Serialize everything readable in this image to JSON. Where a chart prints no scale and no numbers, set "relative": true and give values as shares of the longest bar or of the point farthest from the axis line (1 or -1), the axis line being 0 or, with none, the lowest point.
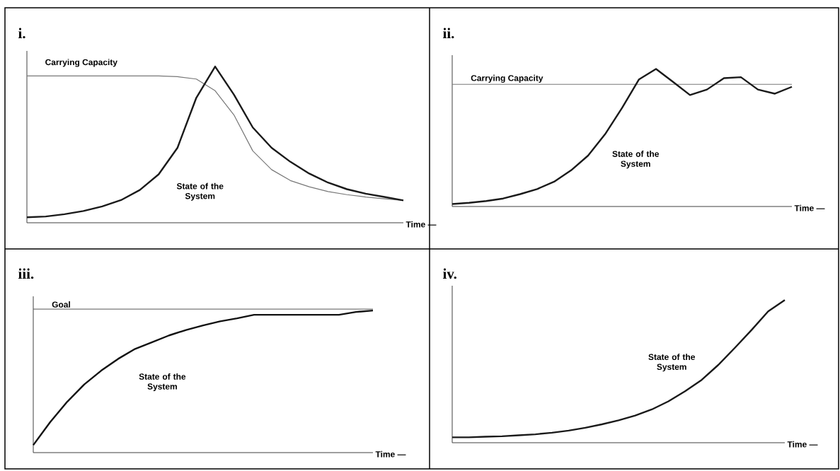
{
  "chart_data": [
    {
      "type": "line",
      "title": "i.",
      "xlabel": "Time —",
      "relative": true,
      "categories": [
        null,
        null,
        null,
        null,
        null,
        null,
        null,
        null,
        null,
        null,
        null,
        null,
        null,
        null,
        null,
        null,
        null,
        null,
        null,
        null,
        null
      ],
      "series": [
        {
          "name": "Carrying Capacity",
          "color": "#777777",
          "values": [
            0.94,
            0.94,
            0.94,
            0.94,
            0.94,
            0.94,
            0.94,
            0.94,
            0.935,
            0.92,
            0.845,
            0.69,
            0.46,
            0.34,
            0.27,
            0.23,
            0.2,
            0.18,
            0.165,
            0.153,
            0.143
          ]
        },
        {
          "name": "State of the System",
          "color": "#1a1a1a",
          "values": [
            0.035,
            0.04,
            0.055,
            0.075,
            0.105,
            0.145,
            0.21,
            0.31,
            0.48,
            0.8,
            1.0,
            0.82,
            0.61,
            0.48,
            0.39,
            0.315,
            0.257,
            0.215,
            0.186,
            0.165,
            0.143
          ]
        }
      ]
    },
    {
      "type": "line",
      "title": "ii.",
      "xlabel": "Time —",
      "relative": true,
      "categories": [
        null,
        null,
        null,
        null,
        null,
        null,
        null,
        null,
        null,
        null,
        null,
        null,
        null,
        null,
        null,
        null,
        null,
        null,
        null,
        null,
        null
      ],
      "ref_lines": [
        {
          "axis": "y",
          "value": 0.888,
          "label": "Carrying Capacity",
          "color": "#777777"
        }
      ],
      "series": [
        {
          "name": "State of the System",
          "color": "#1a1a1a",
          "values": [
            0.018,
            0.027,
            0.04,
            0.058,
            0.09,
            0.127,
            0.18,
            0.263,
            0.37,
            0.525,
            0.716,
            0.924,
            1.0,
            0.906,
            0.81,
            0.85,
            0.933,
            0.94,
            0.85,
            0.82,
            0.87
          ]
        }
      ]
    },
    {
      "type": "line",
      "title": "iii.",
      "xlabel": "Time —",
      "relative": true,
      "categories": [
        null,
        null,
        null,
        null,
        null,
        null,
        null,
        null,
        null,
        null,
        null,
        null,
        null,
        null,
        null,
        null,
        null,
        null,
        null,
        null,
        null
      ],
      "ref_lines": [
        {
          "axis": "y",
          "value": 1.01,
          "label": "Goal",
          "color": "#555555"
        }
      ],
      "series": [
        {
          "name": "State of the System",
          "color": "#111111",
          "values": [
            0.053,
            0.215,
            0.358,
            0.48,
            0.577,
            0.66,
            0.73,
            0.777,
            0.825,
            0.863,
            0.895,
            0.924,
            0.945,
            0.97,
            0.97,
            0.97,
            0.97,
            0.97,
            0.97,
            0.99,
            1.0
          ]
        }
      ]
    },
    {
      "type": "line",
      "title": "iv.",
      "xlabel": "Time —",
      "relative": true,
      "categories": [
        null,
        null,
        null,
        null,
        null,
        null,
        null,
        null,
        null,
        null,
        null,
        null,
        null,
        null,
        null,
        null,
        null,
        null,
        null,
        null,
        null
      ],
      "series": [
        {
          "name": "State of the System",
          "color": "#1a1a1a",
          "values": [
            0.038,
            0.038,
            0.042,
            0.045,
            0.052,
            0.059,
            0.07,
            0.085,
            0.105,
            0.129,
            0.157,
            0.19,
            0.233,
            0.29,
            0.36,
            0.44,
            0.545,
            0.665,
            0.79,
            0.92,
            1.0
          ]
        }
      ]
    }
  ]
}
